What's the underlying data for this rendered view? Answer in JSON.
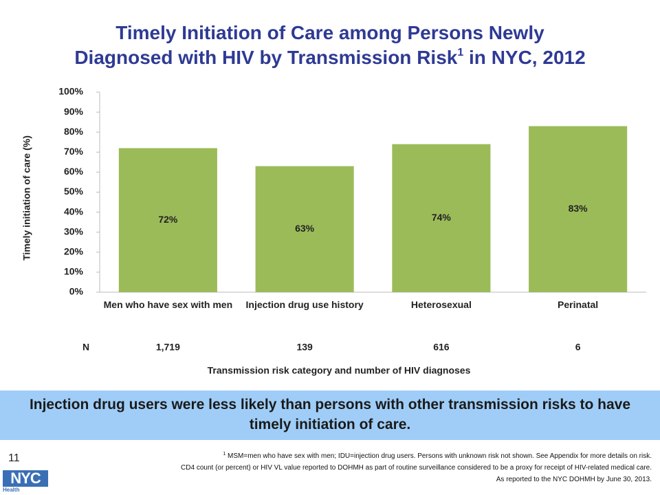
{
  "chart_data": {
    "type": "bar",
    "title_lines": [
      "Timely Initiation of Care among Persons Newly",
      "Diagnosed with HIV by Transmission Risk"
    ],
    "title_superscript": "1",
    "title_suffix": "in NYC, 2012",
    "y_axis_label": "Timely initiation of care (%)",
    "x_axis_label": "Transmission risk category and number of HIV diagnoses",
    "categories": [
      "Men who have sex with men",
      "Injection drug use history",
      "Heterosexual",
      "Perinatal"
    ],
    "values": [
      72,
      63,
      74,
      83
    ],
    "value_labels": [
      "72%",
      "63%",
      "74%",
      "83%"
    ],
    "color": "#9bbb59",
    "ylim": [
      0,
      100
    ],
    "yticks": [
      {
        "value": 0,
        "label": "0%"
      },
      {
        "value": 10,
        "label": "10%"
      },
      {
        "value": 20,
        "label": "20%"
      },
      {
        "value": 30,
        "label": "30%"
      },
      {
        "value": 40,
        "label": "40%"
      },
      {
        "value": 50,
        "label": "50%"
      },
      {
        "value": 60,
        "label": "60%"
      },
      {
        "value": 70,
        "label": "70%"
      },
      {
        "value": 80,
        "label": "80%"
      },
      {
        "value": 90,
        "label": "90%"
      },
      {
        "value": 100,
        "label": "100%"
      }
    ],
    "n_label": "N",
    "n_counts": [
      "1,719",
      "139",
      "616",
      "6"
    ],
    "grid": false
  },
  "callout": "Injection drug users were less likely than persons with other transmission risks to have timely initiation of care.",
  "page_number": "11",
  "footnote_marker": "1",
  "footnote_lines": [
    "MSM=men who have sex with men; IDU=injection drug users. Persons with unknown risk not shown. See Appendix for more details on risk.",
    "CD4 count (or percent) or HIV VL value reported to DOHMH as part of routine surveillance considered to be a proxy for receipt of HIV-related medical care.",
    "As reported to the NYC DOHMH by June 30, 2013."
  ],
  "logo": {
    "name": "NYC",
    "subtitle": "Health"
  }
}
